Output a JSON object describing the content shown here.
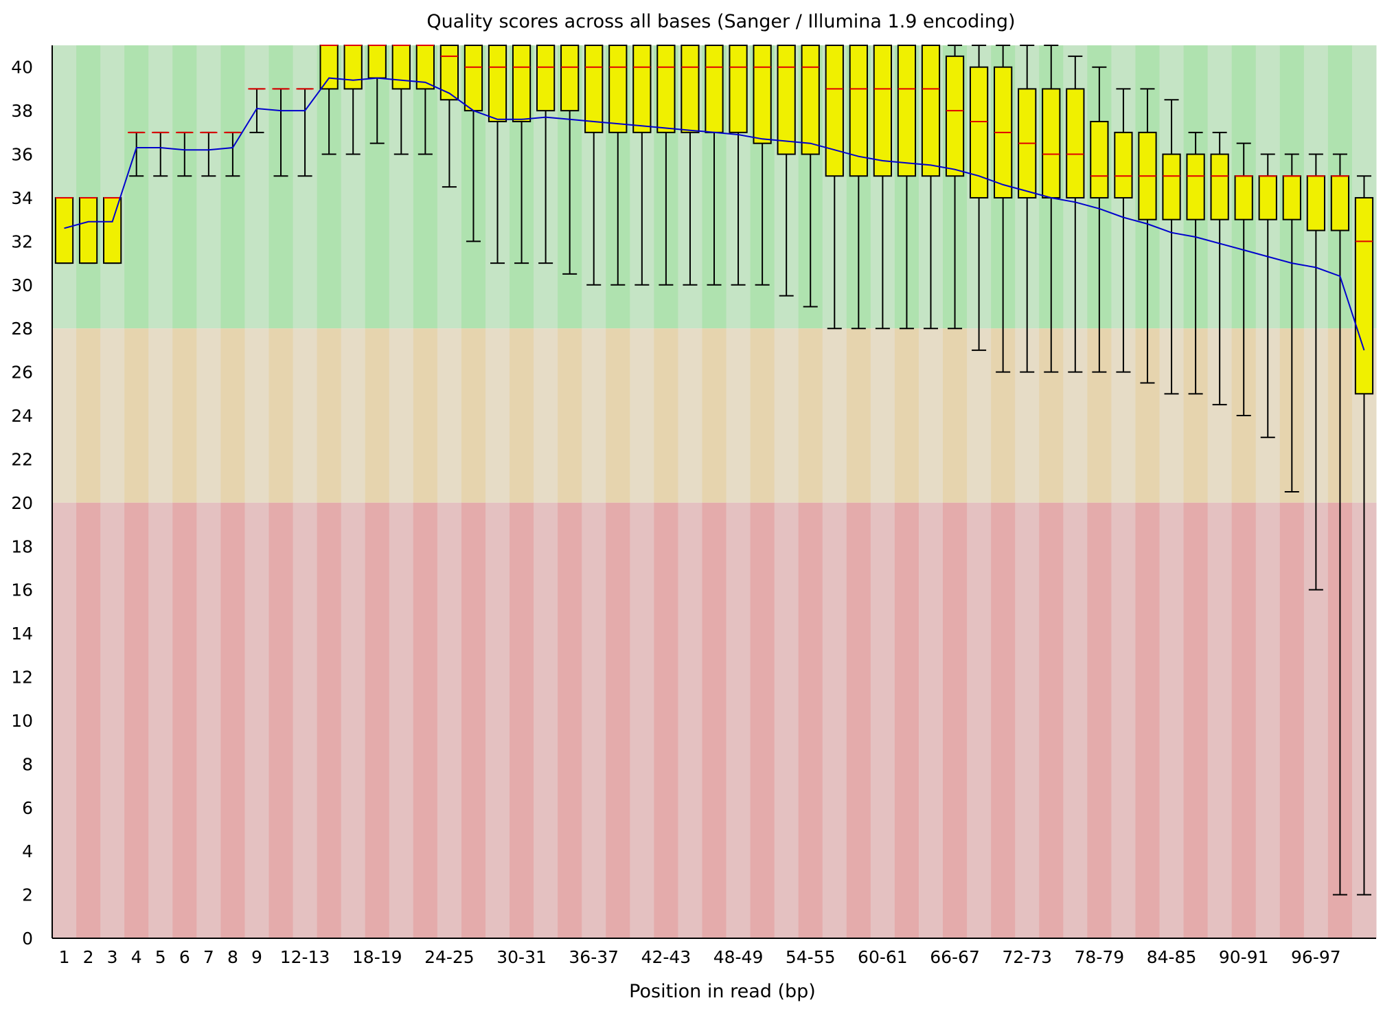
{
  "chart_data": {
    "type": "boxplot",
    "title": "Quality scores across all bases (Sanger / Illumina 1.9 encoding)",
    "xlabel": "Position in read (bp)",
    "ylabel": "",
    "ylim": [
      0,
      41
    ],
    "yticks": [
      0,
      2,
      4,
      6,
      8,
      10,
      12,
      14,
      16,
      18,
      20,
      22,
      24,
      26,
      28,
      30,
      32,
      34,
      36,
      38,
      40
    ],
    "legend": "none",
    "quality_bands": [
      {
        "name": "good",
        "from": 28,
        "to": 41,
        "colors": [
          "#c5e4c5",
          "#afe2af"
        ]
      },
      {
        "name": "reasonable",
        "from": 20,
        "to": 28,
        "colors": [
          "#e6dcc6",
          "#e6d4ae"
        ]
      },
      {
        "name": "poor",
        "from": 0,
        "to": 20,
        "colors": [
          "#e4c1c1",
          "#e4abab"
        ]
      }
    ],
    "colors": {
      "box": "#f0f000",
      "median": "#e00000",
      "mean_line": "#0000cc",
      "whisker": "#000000"
    },
    "categories": [
      "1",
      "2",
      "3",
      "4",
      "5",
      "6",
      "7",
      "8",
      "9",
      "10-11",
      "12-13",
      "14-15",
      "16-17",
      "18-19",
      "20-21",
      "22-23",
      "24-25",
      "26-27",
      "28-29",
      "30-31",
      "32-33",
      "34-35",
      "36-37",
      "38-39",
      "40-41",
      "42-43",
      "44-45",
      "46-47",
      "48-49",
      "50-51",
      "52-53",
      "54-55",
      "56-57",
      "58-59",
      "60-61",
      "62-63",
      "64-65",
      "66-67",
      "68-69",
      "70-71",
      "72-73",
      "74-75",
      "76-77",
      "78-79",
      "80-81",
      "82-83",
      "84-85",
      "86-87",
      "88-89",
      "90-91",
      "92-93",
      "94-95",
      "96-97",
      "98-99",
      "100-101"
    ],
    "x_tick_labels": [
      "1",
      "2",
      "3",
      "4",
      "5",
      "6",
      "7",
      "8",
      "9",
      "12-13",
      "18-19",
      "24-25",
      "30-31",
      "36-37",
      "42-43",
      "48-49",
      "54-55",
      "60-61",
      "66-67",
      "72-73",
      "78-79",
      "84-85",
      "90-91",
      "96-97"
    ],
    "series": [
      {
        "name": "lower whisker",
        "values": [
          31,
          31,
          31,
          35,
          35,
          35,
          35,
          35,
          37,
          35,
          35,
          36,
          36,
          36.5,
          36,
          36,
          34.5,
          32,
          31,
          31,
          31,
          30.5,
          30,
          30,
          30,
          30,
          30,
          30,
          30,
          30,
          29.5,
          29,
          28,
          28,
          28,
          28,
          28,
          28,
          27,
          26,
          26,
          26,
          26,
          26,
          26,
          25.5,
          25,
          25,
          24.5,
          24,
          23,
          20.5,
          16,
          2,
          2
        ]
      },
      {
        "name": "lower quartile",
        "values": [
          31,
          31,
          31,
          37,
          37,
          37,
          37,
          37,
          39,
          39,
          39,
          39,
          39,
          39.5,
          39,
          39,
          38.5,
          38,
          37.5,
          37.5,
          38,
          38,
          37,
          37,
          37,
          37,
          37,
          37,
          37,
          36.5,
          36,
          36,
          35,
          35,
          35,
          35,
          35,
          35,
          34,
          34,
          34,
          34,
          34,
          34,
          34,
          33,
          33,
          33,
          33,
          33,
          33,
          33,
          32.5,
          32.5,
          25
        ]
      },
      {
        "name": "median",
        "values": [
          34,
          34,
          34,
          37,
          37,
          37,
          37,
          37,
          39,
          39,
          39,
          41,
          41,
          41,
          41,
          41,
          40.5,
          40,
          40,
          40,
          40,
          40,
          40,
          40,
          40,
          40,
          40,
          40,
          40,
          40,
          40,
          40,
          39,
          39,
          39,
          39,
          39,
          38,
          37.5,
          37,
          36.5,
          36,
          36,
          35,
          35,
          35,
          35,
          35,
          35,
          35,
          35,
          35,
          35,
          35,
          32
        ]
      },
      {
        "name": "upper quartile",
        "values": [
          34,
          34,
          34,
          37,
          37,
          37,
          37,
          37,
          39,
          39,
          39,
          41,
          41,
          41,
          41,
          41,
          41,
          41,
          41,
          41,
          41,
          41,
          41,
          41,
          41,
          41,
          41,
          41,
          41,
          41,
          41,
          41,
          41,
          41,
          41,
          41,
          41,
          40.5,
          40,
          40,
          39,
          39,
          39,
          37.5,
          37,
          37,
          36,
          36,
          36,
          35,
          35,
          35,
          35,
          35,
          34
        ]
      },
      {
        "name": "upper whisker",
        "values": [
          34,
          34,
          34,
          37,
          37,
          37,
          37,
          37,
          39,
          39,
          39,
          41,
          41,
          41,
          41,
          41,
          41,
          41,
          41,
          41,
          41,
          41,
          41,
          41,
          41,
          41,
          41,
          41,
          41,
          41,
          41,
          41,
          41,
          41,
          41,
          41,
          41,
          41,
          41,
          41,
          41,
          41,
          40.5,
          40,
          39,
          39,
          38.5,
          37,
          37,
          36.5,
          36,
          36,
          36,
          36,
          35
        ]
      },
      {
        "name": "mean",
        "values": [
          32.6,
          32.9,
          32.9,
          36.3,
          36.3,
          36.2,
          36.2,
          36.3,
          38.1,
          38.0,
          38.0,
          39.5,
          39.4,
          39.5,
          39.4,
          39.3,
          38.8,
          38.0,
          37.6,
          37.6,
          37.7,
          37.6,
          37.5,
          37.4,
          37.3,
          37.2,
          37.1,
          37.0,
          36.9,
          36.7,
          36.6,
          36.5,
          36.2,
          35.9,
          35.7,
          35.6,
          35.5,
          35.3,
          35.0,
          34.6,
          34.3,
          34.0,
          33.8,
          33.5,
          33.1,
          32.8,
          32.4,
          32.2,
          31.9,
          31.6,
          31.3,
          31.0,
          30.8,
          30.4,
          27.0
        ]
      }
    ]
  }
}
